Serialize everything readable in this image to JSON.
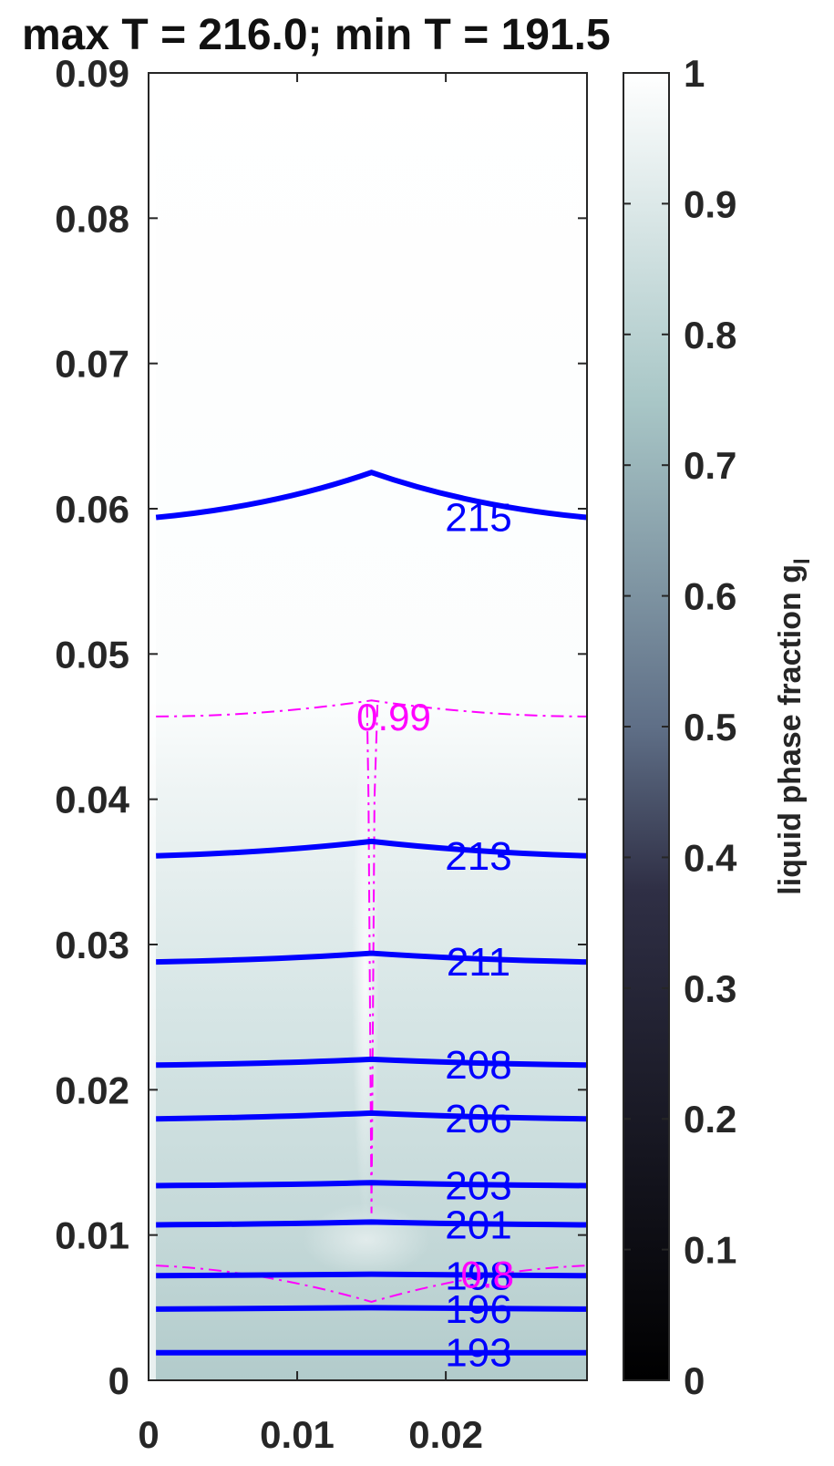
{
  "chart_data": {
    "type": "contour",
    "title": "max T = 216.0; min T = 191.5",
    "xlabel": "",
    "ylabel": "",
    "xlim": [
      0,
      0.0295
    ],
    "ylim": [
      0,
      0.09
    ],
    "x_ticks": [
      0,
      0.01,
      0.02
    ],
    "x_tick_labels": [
      "0",
      "0.01",
      "0.02"
    ],
    "y_ticks": [
      0,
      0.01,
      0.02,
      0.03,
      0.04,
      0.05,
      0.06,
      0.07,
      0.08,
      0.09
    ],
    "y_tick_labels": [
      "0",
      "0.01",
      "0.02",
      "0.03",
      "0.04",
      "0.05",
      "0.06",
      "0.07",
      "0.08",
      "0.09"
    ],
    "colorbar": {
      "label": "liquid phase fraction g",
      "label_subscript": "l",
      "range": [
        0,
        1
      ],
      "ticks": [
        0,
        0.1,
        0.2,
        0.3,
        0.4,
        0.5,
        0.6,
        0.7,
        0.8,
        0.9,
        1
      ],
      "tick_labels": [
        "0",
        "0.1",
        "0.2",
        "0.3",
        "0.4",
        "0.5",
        "0.6",
        "0.7",
        "0.8",
        "0.9",
        "1"
      ],
      "colormap": "bone",
      "colors": {
        "low": "#000000",
        "mid": "#5e6e8a",
        "high": "#ffffff"
      }
    },
    "field": {
      "description_values": {
        "top_region_g": 1.0,
        "bottom_region_g": 0.77
      }
    },
    "temperature_contours": {
      "color": "#0000ff",
      "series": [
        {
          "level": 215,
          "label": "215",
          "y_edge": 0.0594,
          "y_center": 0.0625
        },
        {
          "level": 213,
          "label": "213",
          "y_edge": 0.0361,
          "y_center": 0.0371
        },
        {
          "level": 211,
          "label": "211",
          "y_edge": 0.0288,
          "y_center": 0.0294
        },
        {
          "level": 208,
          "label": "208",
          "y_edge": 0.0217,
          "y_center": 0.0221
        },
        {
          "level": 206,
          "label": "206",
          "y_edge": 0.018,
          "y_center": 0.0184
        },
        {
          "level": 203,
          "label": "203",
          "y_edge": 0.0134,
          "y_center": 0.0136
        },
        {
          "level": 201,
          "label": "201",
          "y_edge": 0.0107,
          "y_center": 0.0109
        },
        {
          "level": 198,
          "label": "198",
          "y_edge": 0.0072,
          "y_center": 0.0073
        },
        {
          "level": 196,
          "label": "196",
          "y_edge": 0.0049,
          "y_center": 0.005
        },
        {
          "level": 193,
          "label": "193",
          "y_edge": 0.0019,
          "y_center": 0.0019
        }
      ]
    },
    "fraction_contours": {
      "color": "#ff00ff",
      "series": [
        {
          "level": 0.99,
          "label": "0.99"
        },
        {
          "level": 0.8,
          "label": "0.8"
        }
      ]
    }
  }
}
